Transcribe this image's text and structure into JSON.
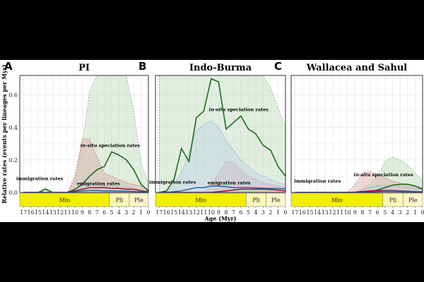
{
  "figure": {
    "ylabel": "Relative rates (events per lineages per Myr)",
    "xlabel": "Age (Myr)",
    "colors": {
      "speciation": "#1f6b1f",
      "speciation_fill": "#bcd9b8",
      "immigration": "#2a5fb0",
      "immigration_fill": "#bcd0e6",
      "emigration": "#a0161a",
      "emigration_fill": "#d9a9a3",
      "epoch_mio": "#f2ee00",
      "epoch_pli": "#fbf6b6",
      "epoch_ple": "#fbf5c9",
      "grid": "#e3e3e3"
    },
    "epochs": [
      {
        "name": "Mio",
        "start": 17.5,
        "end": 5.3
      },
      {
        "name": "Pli",
        "start": 5.3,
        "end": 2.6
      },
      {
        "name": "Ple",
        "start": 2.6,
        "end": 0
      }
    ]
  },
  "chart_data": [
    {
      "type": "line",
      "letter": "A",
      "title": "PI",
      "xlim": [
        17.5,
        0
      ],
      "ylim": [
        0,
        0.72
      ],
      "xticks": [
        17,
        16,
        15,
        14,
        13,
        12,
        11,
        10,
        9,
        8,
        7,
        6,
        5,
        4,
        3,
        2,
        1,
        0
      ],
      "yticks": [
        0.0,
        0.2,
        0.4,
        0.6
      ],
      "ytick_labels": [
        "0.0",
        "0.2",
        "0.4",
        "0.6"
      ],
      "series": [
        {
          "key": "speciation",
          "x": [
            17,
            16,
            15,
            14,
            13,
            12,
            11,
            10,
            9,
            8,
            7,
            6,
            5,
            4,
            3,
            2,
            1,
            0
          ],
          "y": [
            0,
            0,
            0,
            0.02,
            0,
            0,
            0,
            0.02,
            0.05,
            0.1,
            0.14,
            0.16,
            0.25,
            0.23,
            0.2,
            0.14,
            0.05,
            0.01
          ],
          "upper": [
            0,
            0,
            0,
            0.03,
            0,
            0,
            0,
            0.08,
            0.3,
            0.62,
            0.72,
            0.72,
            0.72,
            0.72,
            0.72,
            0.5,
            0.18,
            0.06
          ]
        },
        {
          "key": "emigration",
          "x": [
            17,
            16,
            15,
            14,
            13,
            12,
            11,
            10,
            9,
            8,
            7,
            6,
            5,
            4,
            3,
            2,
            1,
            0
          ],
          "y": [
            0,
            0,
            0,
            0,
            0,
            0,
            0,
            0.01,
            0.02,
            0.03,
            0.03,
            0.03,
            0.025,
            0.025,
            0.02,
            0.02,
            0.01,
            0.005
          ],
          "upper": [
            0,
            0,
            0,
            0,
            0,
            0,
            0,
            0.1,
            0.33,
            0.33,
            0.22,
            0.12,
            0.1,
            0.08,
            0.06,
            0.05,
            0.04,
            0.02
          ]
        },
        {
          "key": "immigration",
          "x": [
            17,
            16,
            15,
            14,
            13,
            12,
            11,
            10,
            9,
            8,
            7,
            6,
            5,
            4,
            3,
            2,
            1,
            0
          ],
          "y": [
            0,
            0,
            0,
            0,
            0,
            0,
            0,
            0.005,
            0.01,
            0.012,
            0.012,
            0.01,
            0.01,
            0.008,
            0.008,
            0.006,
            0.004,
            0.003
          ],
          "upper": [
            0,
            0,
            0,
            0,
            0,
            0,
            0,
            0.02,
            0.04,
            0.05,
            0.05,
            0.04,
            0.04,
            0.03,
            0.03,
            0.02,
            0.02,
            0.01
          ]
        }
      ],
      "annotations": [
        {
          "text_html": "<tspan font-style='italic'>in-situ</tspan> speciation rates",
          "text": "in-situ speciation rates",
          "x": 5.2,
          "y": 0.28
        },
        {
          "text": "immigration rates",
          "x": 14.8,
          "y": 0.075
        },
        {
          "text": "emigration rates",
          "x": 6.8,
          "y": 0.045
        }
      ]
    },
    {
      "type": "line",
      "letter": "B",
      "title": "Indo-Burma",
      "xlim": [
        17.5,
        0
      ],
      "ylim": [
        0,
        0.72
      ],
      "xticks": [
        17,
        16,
        15,
        14,
        13,
        12,
        11,
        10,
        9,
        8,
        7,
        6,
        5,
        4,
        3,
        2,
        1,
        0
      ],
      "yticks": [
        0.0,
        0.2,
        0.4,
        0.6
      ],
      "ytick_labels": [
        "0.0",
        "0.2",
        "0.4",
        "0.6"
      ],
      "series": [
        {
          "key": "speciation",
          "x": [
            17,
            16,
            15,
            14,
            13,
            12,
            11,
            10,
            9,
            8,
            7,
            6,
            5,
            4,
            3,
            2,
            1,
            0
          ],
          "y": [
            0,
            0.01,
            0.08,
            0.27,
            0.19,
            0.46,
            0.5,
            0.7,
            0.68,
            0.39,
            0.43,
            0.47,
            0.39,
            0.36,
            0.29,
            0.26,
            0.16,
            0.1
          ],
          "upper": [
            0.72,
            0.72,
            0.72,
            0.72,
            0.72,
            0.72,
            0.72,
            0.72,
            0.72,
            0.72,
            0.72,
            0.72,
            0.72,
            0.72,
            0.72,
            0.64,
            0.52,
            0.4
          ]
        },
        {
          "key": "emigration",
          "x": [
            17,
            16,
            15,
            14,
            13,
            12,
            11,
            10,
            9,
            8,
            7,
            6,
            5,
            4,
            3,
            2,
            1,
            0
          ],
          "y": [
            0,
            0,
            0,
            0,
            0,
            0,
            0,
            0,
            0.005,
            0.01,
            0.015,
            0.02,
            0.02,
            0.02,
            0.02,
            0.018,
            0.014,
            0.01
          ],
          "upper": [
            0,
            0,
            0,
            0,
            0,
            0,
            0,
            0.05,
            0.12,
            0.19,
            0.19,
            0.14,
            0.1,
            0.08,
            0.06,
            0.05,
            0.04,
            0.03
          ]
        },
        {
          "key": "immigration",
          "x": [
            17,
            16,
            15,
            14,
            13,
            12,
            11,
            10,
            9,
            8,
            7,
            6,
            5,
            4,
            3,
            2,
            1,
            0
          ],
          "y": [
            0,
            0,
            0.005,
            0.01,
            0.02,
            0.03,
            0.03,
            0.04,
            0.04,
            0.035,
            0.03,
            0.03,
            0.03,
            0.028,
            0.026,
            0.025,
            0.024,
            0.022
          ],
          "upper": [
            0,
            0,
            0.05,
            0.12,
            0.24,
            0.38,
            0.42,
            0.44,
            0.4,
            0.32,
            0.26,
            0.2,
            0.16,
            0.12,
            0.1,
            0.08,
            0.06,
            0.05
          ]
        }
      ],
      "annotations": [
        {
          "text_html": "<tspan font-style='italic'>in-situ</tspan> speciation rates",
          "text": "in-situ speciation rates",
          "x": 6.3,
          "y": 0.5
        },
        {
          "text": "immigration rates",
          "x": 15.2,
          "y": 0.055
        },
        {
          "text": "emigration rates",
          "x": 7.6,
          "y": 0.05
        }
      ]
    },
    {
      "type": "line",
      "letter": "C",
      "title": "Wallacea and Sahul",
      "xlim": [
        17.5,
        0
      ],
      "ylim": [
        0,
        0.72
      ],
      "xticks": [
        17,
        16,
        15,
        14,
        13,
        12,
        11,
        10,
        9,
        8,
        7,
        6,
        5,
        4,
        3,
        2,
        1,
        0
      ],
      "yticks": [
        0.0,
        0.2,
        0.4,
        0.6
      ],
      "ytick_labels": [
        "0.0",
        "0.2",
        "0.4",
        "0.6"
      ],
      "series": [
        {
          "key": "speciation",
          "x": [
            17,
            16,
            15,
            14,
            13,
            12,
            11,
            10,
            9,
            8,
            7,
            6,
            5,
            4,
            3,
            2,
            1,
            0
          ],
          "y": [
            0,
            0,
            0,
            0,
            0,
            0,
            0,
            0,
            0,
            0.002,
            0.006,
            0.015,
            0.03,
            0.045,
            0.05,
            0.05,
            0.04,
            0.02
          ],
          "upper": [
            0,
            0,
            0,
            0,
            0,
            0,
            0,
            0,
            0,
            0.02,
            0.05,
            0.1,
            0.19,
            0.22,
            0.2,
            0.17,
            0.12,
            0.07
          ]
        },
        {
          "key": "emigration",
          "x": [
            17,
            16,
            15,
            14,
            13,
            12,
            11,
            10,
            9,
            8,
            7,
            6,
            5,
            4,
            3,
            2,
            1,
            0
          ],
          "y": [
            0,
            0,
            0,
            0,
            0,
            0,
            0,
            0,
            0.002,
            0.006,
            0.01,
            0.012,
            0.012,
            0.012,
            0.01,
            0.008,
            0.005,
            0.003
          ],
          "upper": [
            0,
            0,
            0,
            0,
            0,
            0,
            0,
            0,
            0.05,
            0.12,
            0.13,
            0.11,
            0.09,
            0.07,
            0.06,
            0.05,
            0.04,
            0.03
          ]
        },
        {
          "key": "immigration",
          "x": [
            17,
            16,
            15,
            14,
            13,
            12,
            11,
            10,
            9,
            8,
            7,
            6,
            5,
            4,
            3,
            2,
            1,
            0
          ],
          "y": [
            0,
            0,
            0,
            0,
            0,
            0,
            0,
            0,
            0,
            0.002,
            0.004,
            0.006,
            0.008,
            0.008,
            0.007,
            0.006,
            0.005,
            0.004
          ],
          "upper": [
            0,
            0,
            0,
            0,
            0,
            0,
            0,
            0,
            0,
            0.02,
            0.03,
            0.04,
            0.04,
            0.04,
            0.035,
            0.03,
            0.025,
            0.02
          ]
        }
      ],
      "annotations": [
        {
          "text": "immigration rates",
          "x": 14.0,
          "y": 0.06
        },
        {
          "text_html": "<tspan font-style='italic'>in-situ</tspan> speciation rates",
          "text": "in-situ speciation rates",
          "x": 5.2,
          "y": 0.1
        }
      ]
    }
  ]
}
